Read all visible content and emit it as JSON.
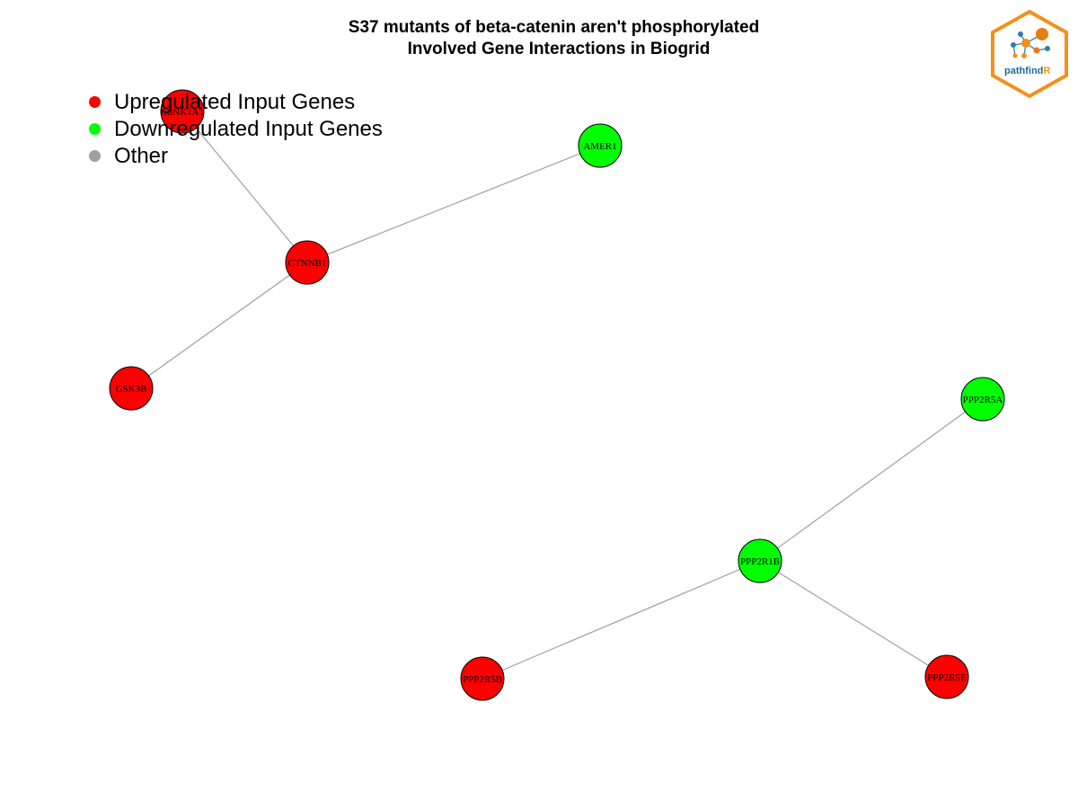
{
  "title": {
    "line1": "S37 mutants of beta-catenin aren't phosphorylated",
    "line2": "Involved Gene Interactions in Biogrid"
  },
  "legend": {
    "items": [
      {
        "label": "Upregulated Input Genes",
        "color": "#ff0000"
      },
      {
        "label": "Downregulated Input Genes",
        "color": "#00ff00"
      },
      {
        "label": "Other",
        "color": "#a0a0a0"
      }
    ]
  },
  "graph": {
    "nodes": [
      {
        "id": "CSNK1A1",
        "label": "CSNK1A1",
        "group": "up"
      },
      {
        "id": "AMER1",
        "label": "AMER1",
        "group": "down"
      },
      {
        "id": "CTNNB1",
        "label": "CTNNB1",
        "group": "up"
      },
      {
        "id": "GSK3B",
        "label": "GSK3B",
        "group": "up"
      },
      {
        "id": "PPP2R5A",
        "label": "PPP2R5A",
        "group": "down"
      },
      {
        "id": "PPP2R1B",
        "label": "PPP2R1B",
        "group": "down"
      },
      {
        "id": "PPP2R5B",
        "label": "PPP2R5B",
        "group": "up"
      },
      {
        "id": "PPP2R5E",
        "label": "PPP2R5E",
        "group": "up"
      }
    ],
    "edges": [
      [
        "CSNK1A1",
        "CTNNB1"
      ],
      [
        "AMER1",
        "CTNNB1"
      ],
      [
        "CTNNB1",
        "GSK3B"
      ],
      [
        "PPP2R5A",
        "PPP2R1B"
      ],
      [
        "PPP2R1B",
        "PPP2R5B"
      ],
      [
        "PPP2R1B",
        "PPP2R5E"
      ]
    ],
    "colors": {
      "up": "#ff0000",
      "down": "#00ff00",
      "other": "#a0a0a0",
      "edge": "#a0a0a0"
    }
  },
  "logo": {
    "text_main": "pathfind",
    "text_accent": "R"
  }
}
